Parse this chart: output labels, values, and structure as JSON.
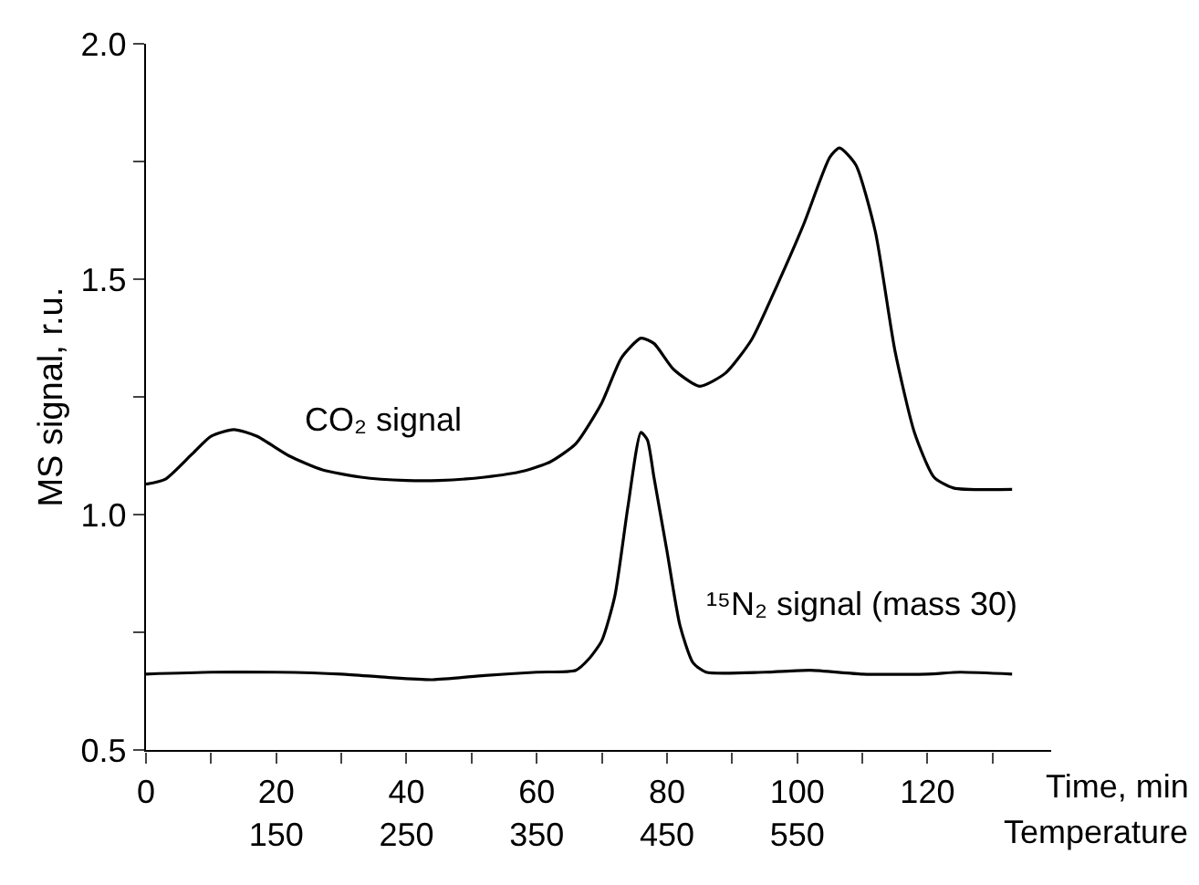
{
  "chart_data": {
    "type": "line",
    "ylabel": "MS signal, r.u.",
    "xlabel": "Time, min",
    "x2label": "Temperature",
    "xlim": [
      0,
      139
    ],
    "ylim": [
      0.5,
      2.0
    ],
    "xticks": [
      0,
      {
        "value": 10,
        "label": null
      },
      20,
      {
        "value": 30,
        "label": null
      },
      40,
      {
        "value": 50,
        "label": null
      },
      60,
      {
        "value": 70,
        "label": null
      },
      80,
      {
        "value": 90,
        "label": null
      },
      100,
      {
        "value": 110,
        "label": null
      },
      120,
      {
        "value": 130,
        "label": null
      }
    ],
    "yticks": [
      0.5,
      {
        "value": 0.75,
        "label": null
      },
      {
        "value": 1.0,
        "label": "1.0"
      },
      {
        "value": 1.25,
        "label": null
      },
      1.5,
      {
        "value": 1.75,
        "label": null
      },
      {
        "value": 2.0,
        "label": "2.0"
      }
    ],
    "x2lim": [
      50,
      745
    ],
    "x2ticks": [
      150,
      250,
      350,
      450,
      550
    ],
    "marker": "none",
    "line_style": "solid",
    "annotations": [
      "CO₂ signal",
      "¹⁵N₂ signal (mass 30)"
    ],
    "series": [
      {
        "color": "#000000",
        "x": [
          0,
          3,
          7,
          10,
          13.5,
          17,
          22,
          27,
          33,
          40,
          45,
          52,
          58,
          62,
          66,
          70,
          73,
          76,
          78,
          81,
          85,
          89,
          93,
          97,
          101,
          105,
          106.5,
          109,
          112,
          115,
          118,
          121,
          124,
          133
        ],
        "values": [
          1.065,
          1.076,
          1.128,
          1.167,
          1.181,
          1.167,
          1.125,
          1.096,
          1.08,
          1.073,
          1.073,
          1.08,
          1.093,
          1.112,
          1.151,
          1.238,
          1.333,
          1.375,
          1.364,
          1.309,
          1.273,
          1.301,
          1.372,
          1.49,
          1.617,
          1.759,
          1.779,
          1.743,
          1.601,
          1.349,
          1.175,
          1.08,
          1.057,
          1.054
        ]
      },
      {
        "color": "#000000",
        "x": [
          0,
          10,
          20,
          30,
          37,
          44,
          52,
          60,
          66,
          68,
          70,
          72,
          74,
          76,
          77,
          78,
          80,
          82,
          84,
          86,
          95,
          102,
          110,
          120,
          125,
          133
        ],
        "values": [
          0.662,
          0.666,
          0.666,
          0.662,
          0.655,
          0.65,
          0.659,
          0.666,
          0.67,
          0.694,
          0.733,
          0.828,
          1.017,
          1.175,
          1.159,
          1.08,
          0.923,
          0.765,
          0.686,
          0.666,
          0.666,
          0.67,
          0.662,
          0.662,
          0.666,
          0.662
        ]
      }
    ]
  }
}
